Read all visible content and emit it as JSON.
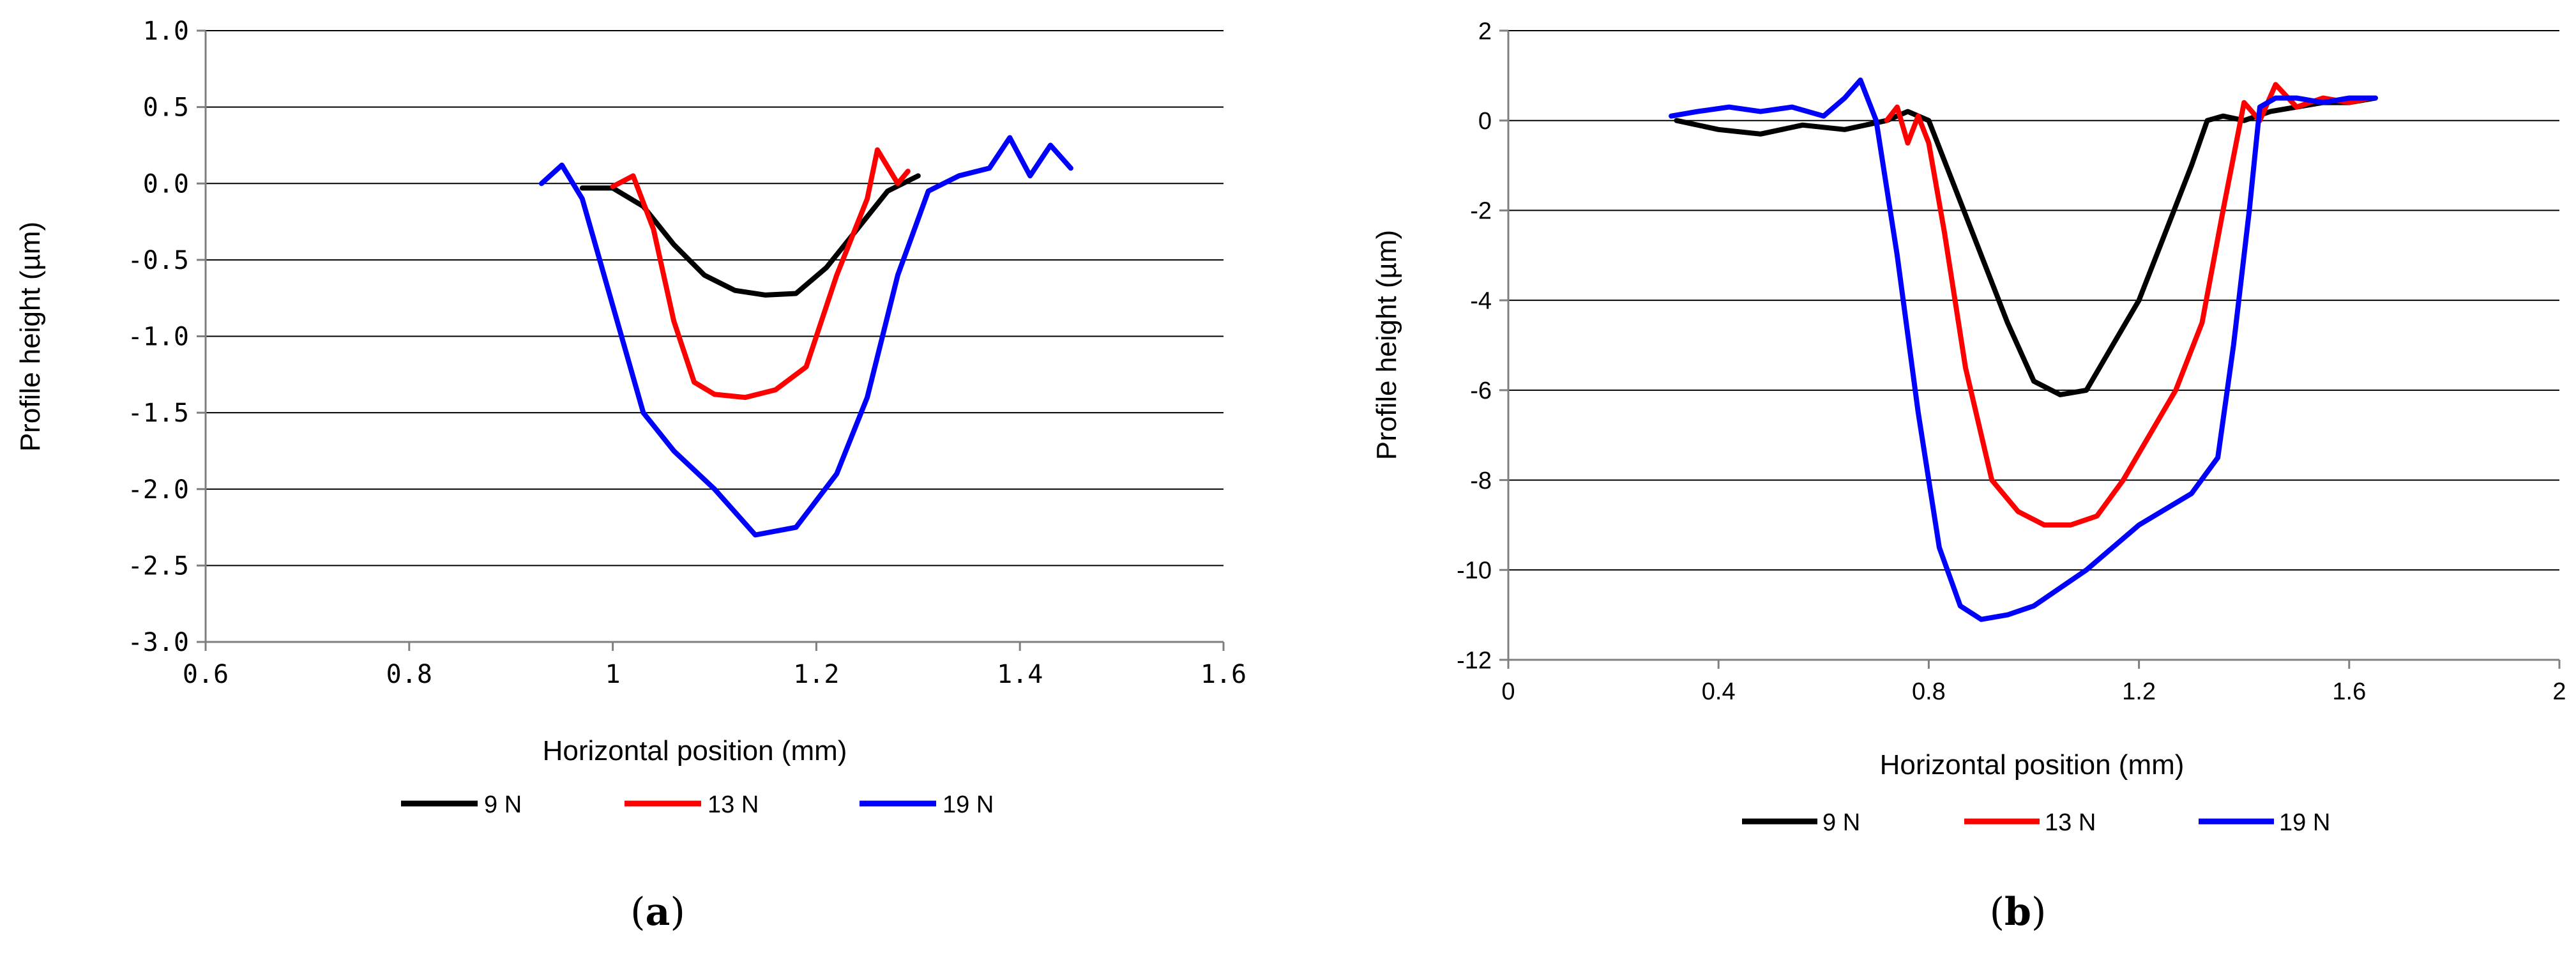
{
  "chart_data": [
    {
      "type": "line",
      "panel_label_open": "(",
      "panel_label_letter": "a",
      "panel_label_close": ")",
      "xlabel": "Horizontal position (mm)",
      "ylabel": "Profile height (µm)",
      "xlim": [
        0.6,
        1.6
      ],
      "ylim": [
        -3.0,
        1.0
      ],
      "x_ticks": [
        0.6,
        0.8,
        1.0,
        1.2,
        1.4,
        1.6
      ],
      "x_tick_labels": [
        "0.6",
        "0.8",
        "1",
        "1.2",
        "1.4",
        "1.6"
      ],
      "y_ticks": [
        1.0,
        0.5,
        0.0,
        -0.5,
        -1.0,
        -1.5,
        -2.0,
        -2.5,
        -3.0
      ],
      "y_tick_labels": [
        "1.0",
        "0.5",
        "0.0",
        "-0.5",
        "-1.0",
        "-1.5",
        "-2.0",
        "-2.5",
        "-3.0"
      ],
      "grid": "horizontal",
      "legend_position": "bottom",
      "series": [
        {
          "name": "9 N",
          "color": "#000000",
          "x": [
            0.97,
            1.0,
            1.03,
            1.06,
            1.09,
            1.12,
            1.15,
            1.18,
            1.21,
            1.24,
            1.27,
            1.3
          ],
          "y": [
            -0.03,
            -0.03,
            -0.15,
            -0.4,
            -0.6,
            -0.7,
            -0.73,
            -0.72,
            -0.55,
            -0.3,
            -0.05,
            0.05
          ]
        },
        {
          "name": "13 N",
          "color": "#ff0000",
          "x": [
            1.0,
            1.02,
            1.04,
            1.06,
            1.08,
            1.1,
            1.13,
            1.16,
            1.19,
            1.22,
            1.25,
            1.26,
            1.28,
            1.29
          ],
          "y": [
            -0.02,
            0.05,
            -0.3,
            -0.9,
            -1.3,
            -1.38,
            -1.4,
            -1.35,
            -1.2,
            -0.6,
            -0.1,
            0.22,
            0.0,
            0.08
          ]
        },
        {
          "name": "19 N",
          "color": "#0000ff",
          "x": [
            0.93,
            0.95,
            0.97,
            1.0,
            1.03,
            1.06,
            1.1,
            1.14,
            1.18,
            1.22,
            1.25,
            1.28,
            1.31,
            1.34,
            1.37,
            1.39,
            1.41,
            1.43,
            1.45
          ],
          "y": [
            0.0,
            0.12,
            -0.1,
            -0.8,
            -1.5,
            -1.75,
            -2.0,
            -2.3,
            -2.25,
            -1.9,
            -1.4,
            -0.6,
            -0.05,
            0.05,
            0.1,
            0.3,
            0.05,
            0.25,
            0.1
          ]
        }
      ]
    },
    {
      "type": "line",
      "panel_label_open": "(",
      "panel_label_letter": "b",
      "panel_label_close": ")",
      "xlabel": "Horizontal position (mm)",
      "ylabel": "Profile height (µm)",
      "xlim": [
        0,
        2
      ],
      "ylim": [
        -12,
        2
      ],
      "x_ticks": [
        0,
        0.4,
        0.8,
        1.2,
        1.6,
        2.0
      ],
      "x_tick_labels": [
        "0",
        "0.4",
        "0.8",
        "1.2",
        "1.6",
        "2"
      ],
      "y_ticks": [
        2,
        0,
        -2,
        -4,
        -6,
        -8,
        -10,
        -12
      ],
      "y_tick_labels": [
        "2",
        "0",
        "-2",
        "-4",
        "-6",
        "-8",
        "-10",
        "-12"
      ],
      "grid": "horizontal",
      "legend_position": "bottom",
      "series": [
        {
          "name": "9 N",
          "color": "#000000",
          "x": [
            0.32,
            0.4,
            0.48,
            0.56,
            0.64,
            0.72,
            0.76,
            0.8,
            0.85,
            0.9,
            0.95,
            1.0,
            1.05,
            1.1,
            1.15,
            1.2,
            1.25,
            1.3,
            1.33,
            1.36,
            1.4,
            1.45,
            1.5,
            1.55,
            1.6,
            1.65
          ],
          "y": [
            0.0,
            -0.2,
            -0.3,
            -0.1,
            -0.2,
            0.0,
            0.2,
            0.0,
            -1.5,
            -3.0,
            -4.5,
            -5.8,
            -6.1,
            -6.0,
            -5.0,
            -4.0,
            -2.5,
            -1.0,
            0.0,
            0.1,
            0.0,
            0.2,
            0.3,
            0.4,
            0.4,
            0.5
          ]
        },
        {
          "name": "13 N",
          "color": "#ff0000",
          "x": [
            0.72,
            0.74,
            0.76,
            0.78,
            0.8,
            0.83,
            0.87,
            0.92,
            0.97,
            1.02,
            1.07,
            1.12,
            1.17,
            1.22,
            1.27,
            1.32,
            1.36,
            1.4,
            1.43,
            1.46,
            1.5,
            1.55,
            1.6,
            1.64
          ],
          "y": [
            0.0,
            0.3,
            -0.5,
            0.1,
            -0.5,
            -2.5,
            -5.5,
            -8.0,
            -8.7,
            -9.0,
            -9.0,
            -8.8,
            -8.0,
            -7.0,
            -6.0,
            -4.5,
            -2.0,
            0.4,
            0.0,
            0.8,
            0.3,
            0.5,
            0.4,
            0.5
          ]
        },
        {
          "name": "19 N",
          "color": "#0000ff",
          "x": [
            0.31,
            0.36,
            0.42,
            0.48,
            0.54,
            0.6,
            0.64,
            0.67,
            0.7,
            0.74,
            0.78,
            0.82,
            0.86,
            0.9,
            0.95,
            1.0,
            1.1,
            1.2,
            1.3,
            1.35,
            1.38,
            1.41,
            1.43,
            1.46,
            1.5,
            1.55,
            1.6,
            1.65
          ],
          "y": [
            0.1,
            0.2,
            0.3,
            0.2,
            0.3,
            0.1,
            0.5,
            0.9,
            0.0,
            -3.0,
            -6.5,
            -9.5,
            -10.8,
            -11.1,
            -11.0,
            -10.8,
            -10.0,
            -9.0,
            -8.3,
            -7.5,
            -5.0,
            -2.0,
            0.3,
            0.5,
            0.5,
            0.4,
            0.5,
            0.5
          ]
        }
      ]
    }
  ]
}
